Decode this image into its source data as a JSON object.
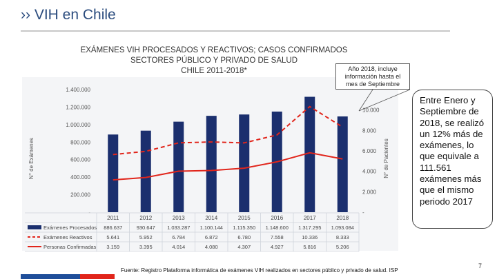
{
  "header": {
    "title": "›› VIH en Chile"
  },
  "callout_note": [
    "Año 2018, incluye",
    "información hasta el",
    "mes de Septiembre"
  ],
  "callout_bubble": "Entre Enero y Septiembre de 2018, se realizó un 12% más de exámenes, lo que equivale a 111.561 exámenes más que el mismo periodo 2017",
  "source": "Fuente: Registro Plataforma informática de exámenes VIH realizados en sectores público y privado de salud. ISP",
  "page_number": "7",
  "colors": {
    "bar": "#1b2f6e",
    "red": "#e1251b",
    "header": "#2b4c7e"
  },
  "chart_data": {
    "type": "bar",
    "title_lines": [
      "EXÁMENES VIH PROCESADOS Y REACTIVOS; CASOS CONFIRMADOS",
      "SECTORES PÚBLICO Y PRIVADO DE SALUD",
      "CHILE 2011-2018*"
    ],
    "categories": [
      "2011",
      "2012",
      "2013",
      "2014",
      "2015",
      "2016",
      "2017",
      "2018"
    ],
    "ylabel_left": "N° de Exámenes",
    "ylabel_right": "N° de Pacientes",
    "yticks_left": [
      "-",
      "200.000",
      "400.000",
      "600.000",
      "800.000",
      "1.000.000",
      "1.200.000",
      "1.400.000"
    ],
    "yticks_right": [
      "-",
      "2.000",
      "4.000",
      "6.000",
      "8.000",
      "10.000"
    ],
    "ylim_left": [
      0,
      1400000
    ],
    "ylim_right": [
      0,
      12000
    ],
    "series": [
      {
        "name": "Exámenes Procesados",
        "kind": "bar",
        "axis": "left",
        "values": [
          886637,
          930647,
          1033287,
          1100144,
          1115350,
          1148600,
          1317295,
          1093084
        ],
        "labels": [
          "886.637",
          "930.647",
          "1.033.287",
          "1.100.144",
          "1.115.350",
          "1.148.600",
          "1.317.295",
          "1.093.084"
        ]
      },
      {
        "name": "Exámenes Reactivos",
        "kind": "dashed",
        "axis": "right",
        "values": [
          5641,
          5952,
          6784,
          6872,
          6780,
          7558,
          10336,
          8333
        ],
        "labels": [
          "5.641",
          "5.952",
          "6.784",
          "6.872",
          "6.780",
          "7.558",
          "10.336",
          "8.333"
        ]
      },
      {
        "name": "Personas Confirmadas",
        "kind": "solid",
        "axis": "right",
        "values": [
          3159,
          3395,
          4014,
          4080,
          4307,
          4927,
          5816,
          5206
        ],
        "labels": [
          "3.159",
          "3.395",
          "4.014",
          "4.080",
          "4.307",
          "4.927",
          "5.816",
          "5.206"
        ]
      }
    ]
  }
}
